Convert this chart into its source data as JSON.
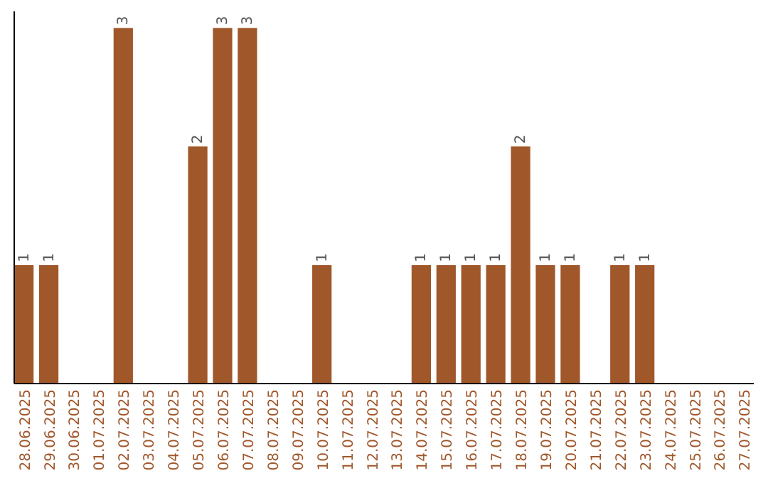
{
  "chart_data": {
    "type": "bar",
    "categories": [
      "28.06.2025",
      "29.06.2025",
      "30.06.2025",
      "01.07.2025",
      "02.07.2025",
      "03.07.2025",
      "04.07.2025",
      "05.07.2025",
      "06.07.2025",
      "07.07.2025",
      "08.07.2025",
      "09.07.2025",
      "10.07.2025",
      "11.07.2025",
      "12.07.2025",
      "13.07.2025",
      "14.07.2025",
      "15.07.2025",
      "16.07.2025",
      "17.07.2025",
      "18.07.2025",
      "19.07.2025",
      "20.07.2025",
      "21.07.2025",
      "22.07.2025",
      "23.07.2025",
      "24.07.2025",
      "25.07.2025",
      "26.07.2025",
      "27.07.2025"
    ],
    "values": [
      1,
      1,
      0,
      0,
      3,
      0,
      0,
      2,
      3,
      3,
      0,
      0,
      1,
      0,
      0,
      0,
      1,
      1,
      1,
      1,
      2,
      1,
      1,
      0,
      1,
      1,
      0,
      0,
      0,
      0
    ],
    "value_labels": [
      "1",
      "1",
      null,
      null,
      "3",
      null,
      null,
      "2",
      "3",
      "3",
      null,
      null,
      "1",
      null,
      null,
      null,
      "1",
      "1",
      "1",
      "1",
      "2",
      "1",
      "1",
      null,
      "1",
      "1",
      null,
      null,
      null,
      null
    ],
    "color": "#a0572a",
    "ylim": [
      0,
      3.14
    ],
    "tick_labels": "x"
  }
}
